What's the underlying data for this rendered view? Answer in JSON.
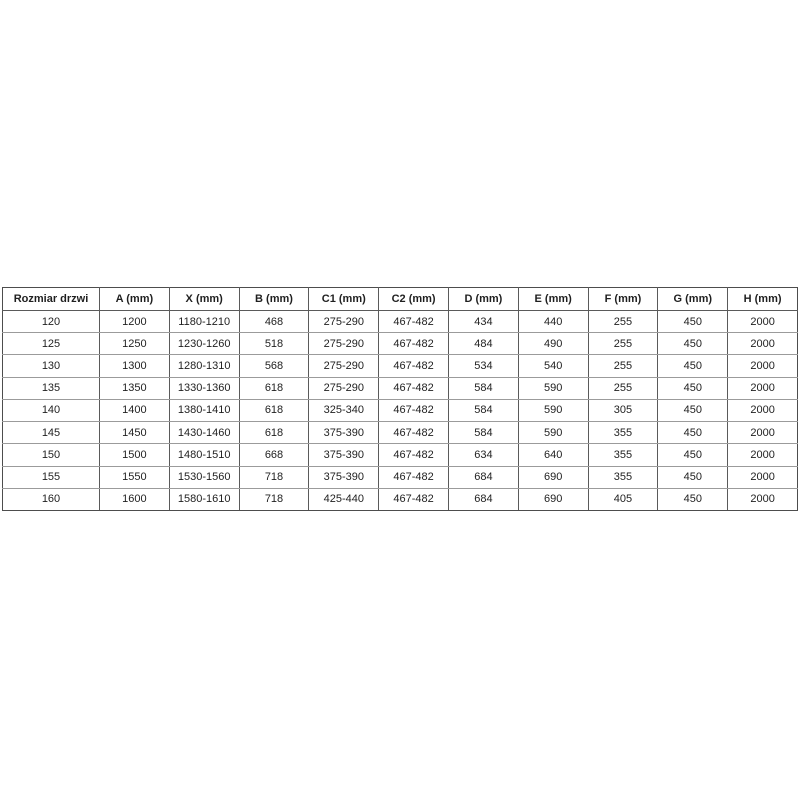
{
  "table": {
    "headers": [
      "Rozmiar drzwi",
      "A (mm)",
      "X (mm)",
      "B (mm)",
      "C1 (mm)",
      "C2 (mm)",
      "D (mm)",
      "E (mm)",
      "F (mm)",
      "G (mm)",
      "H (mm)"
    ],
    "rows": [
      [
        "120",
        "1200",
        "1180-1210",
        "468",
        "275-290",
        "467-482",
        "434",
        "440",
        "255",
        "450",
        "2000"
      ],
      [
        "125",
        "1250",
        "1230-1260",
        "518",
        "275-290",
        "467-482",
        "484",
        "490",
        "255",
        "450",
        "2000"
      ],
      [
        "130",
        "1300",
        "1280-1310",
        "568",
        "275-290",
        "467-482",
        "534",
        "540",
        "255",
        "450",
        "2000"
      ],
      [
        "135",
        "1350",
        "1330-1360",
        "618",
        "275-290",
        "467-482",
        "584",
        "590",
        "255",
        "450",
        "2000"
      ],
      [
        "140",
        "1400",
        "1380-1410",
        "618",
        "325-340",
        "467-482",
        "584",
        "590",
        "305",
        "450",
        "2000"
      ],
      [
        "145",
        "1450",
        "1430-1460",
        "618",
        "375-390",
        "467-482",
        "584",
        "590",
        "355",
        "450",
        "2000"
      ],
      [
        "150",
        "1500",
        "1480-1510",
        "668",
        "375-390",
        "467-482",
        "634",
        "640",
        "355",
        "450",
        "2000"
      ],
      [
        "155",
        "1550",
        "1530-1560",
        "718",
        "375-390",
        "467-482",
        "684",
        "690",
        "355",
        "450",
        "2000"
      ],
      [
        "160",
        "1600",
        "1580-1610",
        "718",
        "425-440",
        "467-482",
        "684",
        "690",
        "405",
        "450",
        "2000"
      ]
    ]
  },
  "colors": {
    "page_background": "#ffffff",
    "text": "#1f1f1f",
    "border_outer": "#4d4d4d",
    "border_vertical": "#5a5a5a",
    "border_horizontal": "#9b9b9b"
  }
}
